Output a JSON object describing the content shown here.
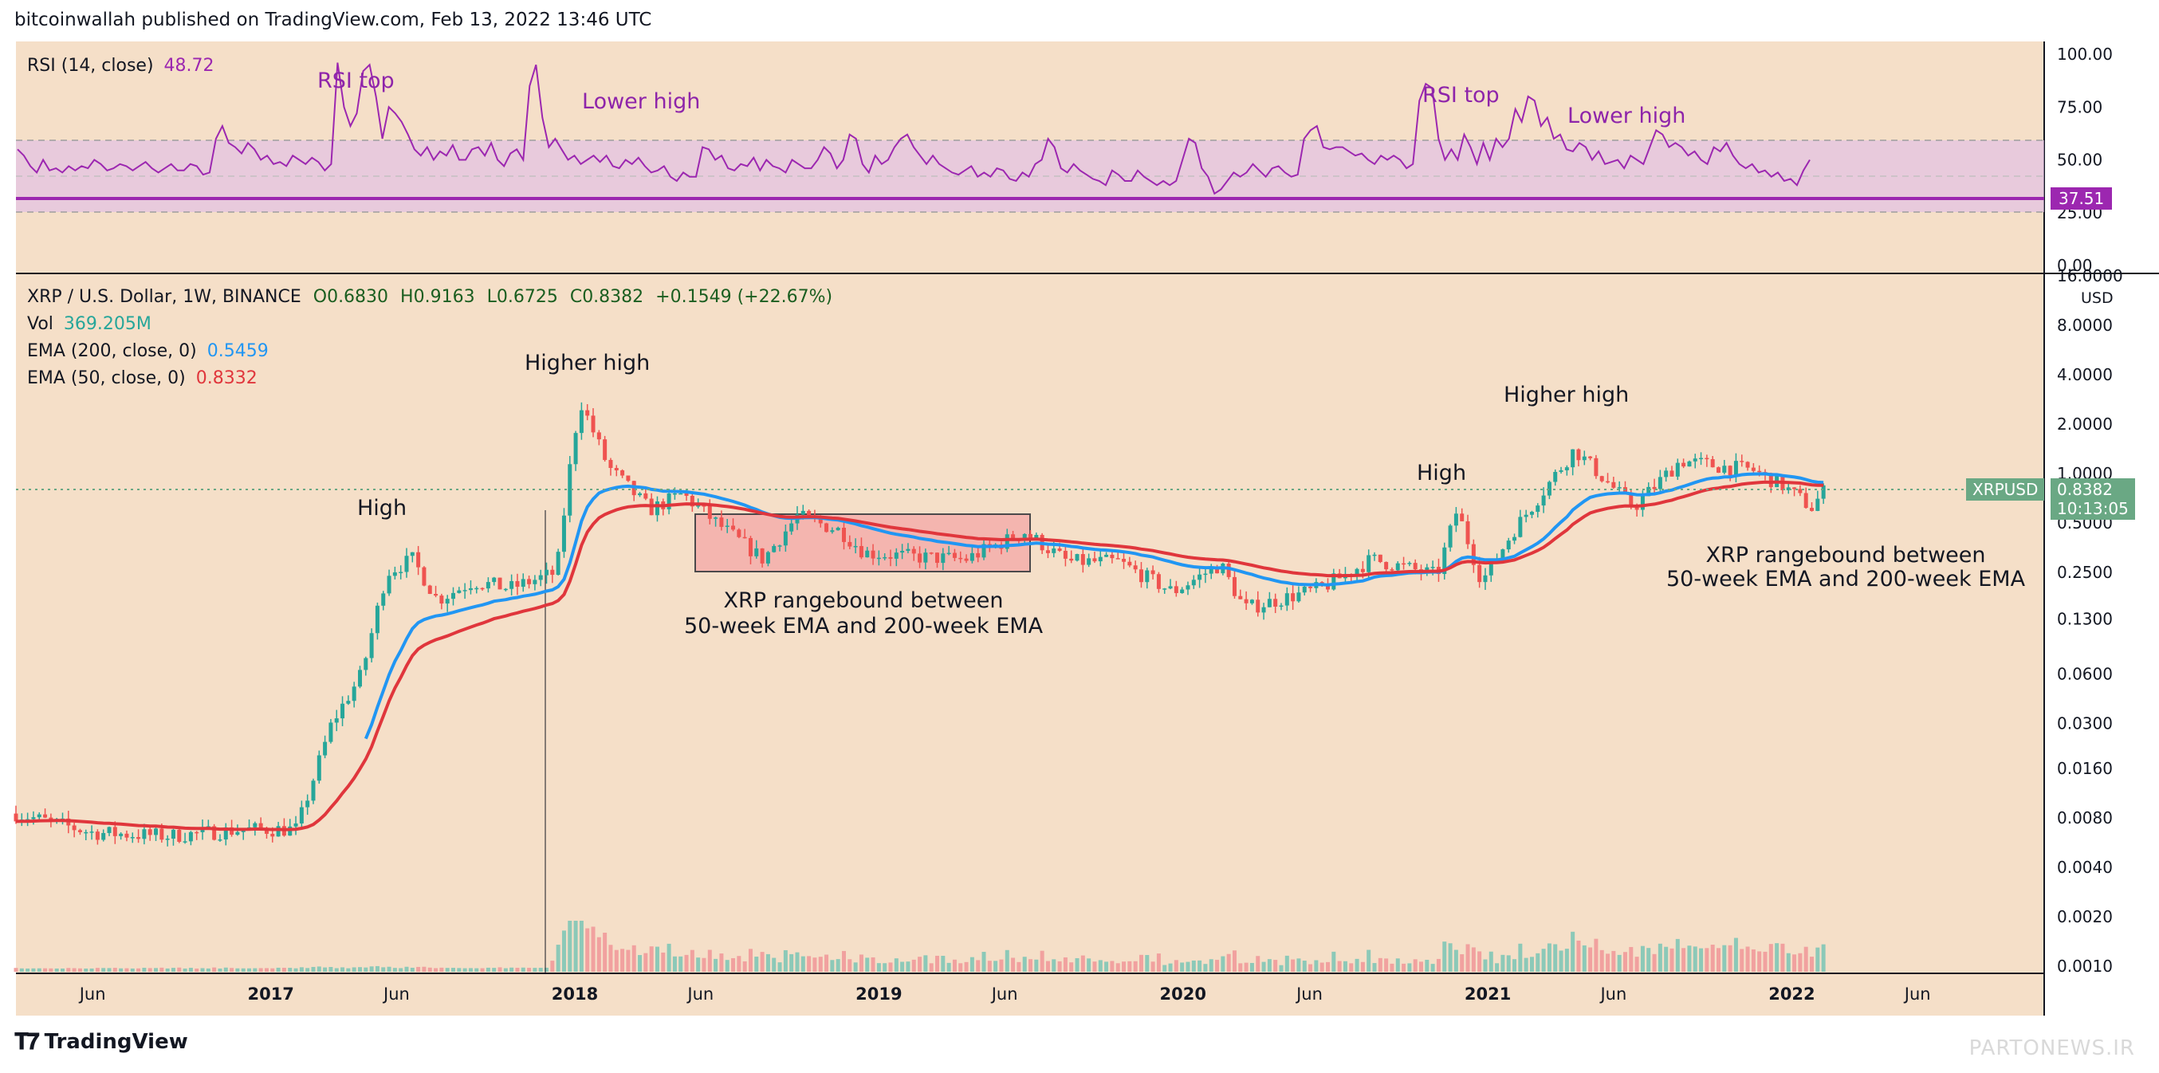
{
  "header": "bitcoinwallah published on TradingView.com, Feb 13, 2022 13:46 UTC",
  "footer": {
    "brand": "TradingView",
    "watermark": "PARTONEWS.IR"
  },
  "rsi_legend": {
    "label": "RSI (14, close)",
    "value": "48.72"
  },
  "main_legend": {
    "symbol": "XRP / U.S. Dollar, 1W, BINANCE",
    "open": "O0.6830",
    "high": "H0.9163",
    "low": "L0.6725",
    "close": "C0.8382",
    "change": "+0.1549 (+22.67%)",
    "vol_label": "Vol",
    "vol_value": "369.205M",
    "ema200_label": "EMA (200, close, 0)",
    "ema200_value": "0.5459",
    "ema50_label": "EMA (50, close, 0)",
    "ema50_value": "0.8332"
  },
  "annotations": {
    "high_1": "High",
    "higher_high_1": "Higher high",
    "range_1_line1": "XRP rangebound between",
    "range_1_line2": "50-week EMA and 200-week EMA",
    "high_2": "High",
    "higher_high_2": "Higher high",
    "range_2_line1": "XRP rangebound between",
    "range_2_line2": "50-week EMA and 200-week EMA",
    "rsi_top_1": "RSI top",
    "lower_high_1": "Lower high",
    "rsi_top_2": "RSI top",
    "lower_high_2": "Lower high"
  },
  "price_tag": {
    "symbol": "XRPUSD",
    "price": "0.8382",
    "countdown": "10:13:05"
  },
  "rsi_tag": "37.51",
  "colors": {
    "background": "#f5dfc8",
    "up": "#26a69a",
    "down": "#ef5350",
    "ema50": "#e0363c",
    "ema200": "#2196f3",
    "rsi": "#9c27b0",
    "rsi_band": "#e1bee7",
    "annotation_purple": "#8e24aa"
  },
  "chart_data": [
    {
      "type": "line",
      "name": "RSI",
      "title": "RSI (14, close)",
      "y_ticks": [
        "100.00",
        "75.00",
        "50.00",
        "25.00",
        "0.00"
      ],
      "ylim": [
        0,
        100
      ],
      "band": [
        30,
        70
      ],
      "horizontal_line": 37.51,
      "values": [
        55,
        52,
        47,
        44,
        50,
        45,
        46,
        44,
        47,
        45,
        47,
        46,
        50,
        48,
        45,
        46,
        48,
        47,
        45,
        47,
        49,
        46,
        44,
        46,
        48,
        45,
        45,
        48,
        47,
        43,
        44,
        60,
        66,
        58,
        56,
        53,
        58,
        55,
        50,
        52,
        48,
        49,
        47,
        52,
        50,
        48,
        51,
        49,
        45,
        48,
        96,
        75,
        66,
        72,
        92,
        95,
        80,
        60,
        75,
        72,
        68,
        62,
        55,
        52,
        56,
        50,
        54,
        52,
        57,
        50,
        50,
        55,
        56,
        52,
        58,
        50,
        47,
        53,
        55,
        50,
        85,
        95,
        70,
        56,
        60,
        55,
        50,
        52,
        48,
        50,
        52,
        49,
        52,
        47,
        46,
        50,
        48,
        51,
        47,
        44,
        45,
        47,
        42,
        40,
        44,
        42,
        42,
        56,
        55,
        50,
        52,
        46,
        45,
        48,
        47,
        51,
        45,
        50,
        47,
        46,
        44,
        50,
        48,
        46,
        46,
        50,
        56,
        53,
        46,
        50,
        62,
        60,
        48,
        44,
        52,
        48,
        50,
        56,
        60,
        62,
        56,
        52,
        48,
        52,
        48,
        46,
        44,
        43,
        45,
        47,
        42,
        44,
        42,
        46,
        45,
        41,
        40,
        44,
        42,
        48,
        50,
        60,
        56,
        46,
        44,
        48,
        45,
        43,
        41,
        40,
        38,
        45,
        43,
        40,
        40,
        45,
        42,
        40,
        38,
        40,
        38,
        40,
        50,
        60,
        58,
        46,
        42,
        34,
        36,
        40,
        44,
        42,
        44,
        48,
        45,
        42,
        46,
        47,
        44,
        42,
        43,
        60,
        64,
        66,
        56,
        55,
        56,
        56,
        54,
        52,
        53,
        50,
        48,
        52,
        50,
        52,
        50,
        46,
        48,
        78,
        86,
        84,
        60,
        50,
        55,
        50,
        62,
        56,
        48,
        58,
        50,
        60,
        56,
        60,
        74,
        68,
        80,
        78,
        66,
        70,
        60,
        62,
        55,
        54,
        58,
        56,
        50,
        54,
        48,
        49,
        50,
        46,
        52,
        50,
        48,
        56,
        64,
        62,
        56,
        58,
        56,
        52,
        54,
        50,
        48,
        56,
        54,
        58,
        52,
        48,
        46,
        48,
        44,
        45,
        42,
        44,
        40,
        41,
        38,
        45,
        50
      ]
    },
    {
      "type": "line",
      "title": "XRP / U.S. Dollar, 1W, BINANCE",
      "y_scale": "log",
      "y_unit": "USD",
      "y_ticks": [
        "16.0000",
        "8.0000",
        "4.0000",
        "2.0000",
        "1.0000",
        "0.5000",
        "0.2500",
        "0.1300",
        "0.0600",
        "0.0300",
        "0.0160",
        "0.0080",
        "0.0040",
        "0.0020",
        "0.0010"
      ],
      "x_ticks": [
        "Jun",
        "2017",
        "Jun",
        "2018",
        "Jun",
        "2019",
        "Jun",
        "2020",
        "Jun",
        "2021",
        "Jun",
        "2022",
        "Jun"
      ],
      "x_dates": [
        "2016-06-01",
        "2017-01-01",
        "2017-06-01",
        "2018-01-01",
        "2018-06-01",
        "2019-01-01",
        "2019-06-01",
        "2020-01-01",
        "2020-06-01",
        "2021-01-01",
        "2021-06-01",
        "2022-01-01",
        "2022-06-01"
      ],
      "last_close": 0.8382,
      "series": [
        {
          "name": "Vol",
          "role": "volume"
        },
        {
          "name": "EMA (50, close, 0)",
          "last": 0.8332
        },
        {
          "name": "EMA (200, close, 0)",
          "last": 0.5459
        }
      ]
    }
  ]
}
